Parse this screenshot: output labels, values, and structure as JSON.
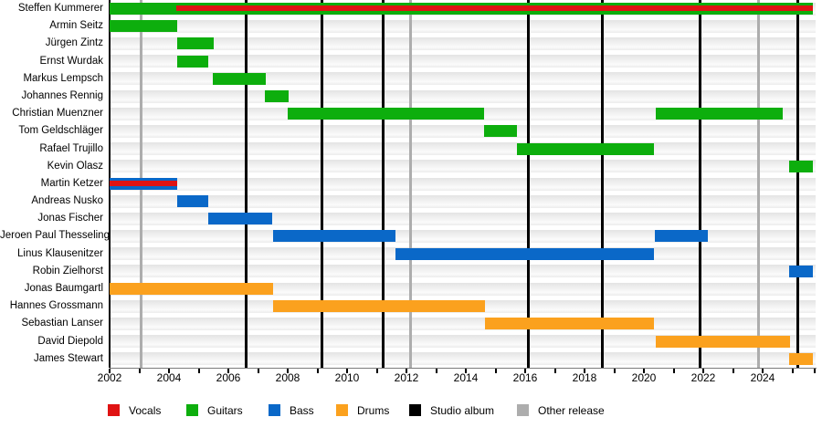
{
  "chart_data": {
    "type": "timeline",
    "description": "Band members timeline (Gantt-style) with instrument tenures and release markers",
    "x_axis": {
      "start_year": 2002,
      "end_year": 2025.8,
      "tick_labels": [
        "2002",
        "2004",
        "2006",
        "2008",
        "2010",
        "2012",
        "2014",
        "2016",
        "2018",
        "2020",
        "2022",
        "2024"
      ],
      "labeled_tick_years": [
        2002,
        2004,
        2006,
        2008,
        2010,
        2012,
        2014,
        2016,
        2018,
        2020,
        2022,
        2024
      ],
      "minor_tick_years": [
        2002,
        2003,
        2004,
        2005,
        2006,
        2007,
        2008,
        2009,
        2010,
        2011,
        2012,
        2013,
        2014,
        2015,
        2016,
        2017,
        2018,
        2019,
        2020,
        2021,
        2022,
        2023,
        2024,
        2025
      ]
    },
    "legend": [
      {
        "key": "vocals",
        "label": "Vocals"
      },
      {
        "key": "guitars",
        "label": "Guitars"
      },
      {
        "key": "bass",
        "label": "Bass"
      },
      {
        "key": "drums",
        "label": "Drums"
      },
      {
        "key": "studio_album",
        "label": "Studio album"
      },
      {
        "key": "other_release",
        "label": "Other release"
      }
    ],
    "colors": {
      "vocals": "#e01313",
      "guitars": "#0dae0d",
      "bass": "#0a68c8",
      "drums": "#fba11e",
      "studio_album": "#000000",
      "other_release": "#adadad"
    },
    "events": {
      "studio_albums": [
        2006.6,
        2009.15,
        2011.2,
        2016.1,
        2018.6,
        2021.9,
        2025.17
      ],
      "other_releases": [
        2003.05,
        2012.15,
        2023.85
      ]
    },
    "members": [
      {
        "name": "Steffen Kummerer",
        "stints": [
          {
            "instrument": "guitars",
            "start": 2002.0,
            "end": 2025.7
          },
          {
            "instrument": "vocals",
            "start": 2004.25,
            "end": 2025.7,
            "overlay": true
          }
        ]
      },
      {
        "name": "Armin Seitz",
        "stints": [
          {
            "instrument": "guitars",
            "start": 2002.0,
            "end": 2004.28
          }
        ]
      },
      {
        "name": "Jürgen Zintz",
        "stints": [
          {
            "instrument": "guitars",
            "start": 2004.28,
            "end": 2005.5
          }
        ]
      },
      {
        "name": "Ernst Wurdak",
        "stints": [
          {
            "instrument": "guitars",
            "start": 2004.28,
            "end": 2005.32
          }
        ]
      },
      {
        "name": "Markus Lempsch",
        "stints": [
          {
            "instrument": "guitars",
            "start": 2005.48,
            "end": 2007.26
          }
        ]
      },
      {
        "name": "Johannes Rennig",
        "stints": [
          {
            "instrument": "guitars",
            "start": 2007.23,
            "end": 2008.03
          }
        ]
      },
      {
        "name": "Christian Muenzner",
        "stints": [
          {
            "instrument": "guitars",
            "start": 2008.0,
            "end": 2014.62
          },
          {
            "instrument": "guitars",
            "start": 2020.4,
            "end": 2024.68
          }
        ]
      },
      {
        "name": "Tom Geldschläger",
        "stints": [
          {
            "instrument": "guitars",
            "start": 2014.62,
            "end": 2015.72
          }
        ]
      },
      {
        "name": "Rafael Trujillo",
        "stints": [
          {
            "instrument": "guitars",
            "start": 2015.72,
            "end": 2020.34
          }
        ]
      },
      {
        "name": "Kevin Olasz",
        "stints": [
          {
            "instrument": "guitars",
            "start": 2024.9,
            "end": 2025.7
          }
        ]
      },
      {
        "name": "Martin Ketzer",
        "stints": [
          {
            "instrument": "bass",
            "start": 2002.0,
            "end": 2004.28
          },
          {
            "instrument": "vocals",
            "start": 2002.0,
            "end": 2004.28,
            "overlay": true
          }
        ]
      },
      {
        "name": "Andreas Nusko",
        "stints": [
          {
            "instrument": "bass",
            "start": 2004.28,
            "end": 2005.32
          }
        ]
      },
      {
        "name": "Jonas Fischer",
        "stints": [
          {
            "instrument": "bass",
            "start": 2005.32,
            "end": 2007.48
          }
        ]
      },
      {
        "name": "Jeroen Paul Thesseling",
        "stints": [
          {
            "instrument": "bass",
            "start": 2007.5,
            "end": 2011.63
          },
          {
            "instrument": "bass",
            "start": 2020.38,
            "end": 2022.15
          }
        ]
      },
      {
        "name": "Linus Klausenitzer",
        "stints": [
          {
            "instrument": "bass",
            "start": 2011.63,
            "end": 2020.34
          }
        ]
      },
      {
        "name": "Robin Zielhorst",
        "stints": [
          {
            "instrument": "bass",
            "start": 2024.9,
            "end": 2025.7
          }
        ]
      },
      {
        "name": "Jonas Baumgartl",
        "stints": [
          {
            "instrument": "drums",
            "start": 2002.0,
            "end": 2007.5
          }
        ]
      },
      {
        "name": "Hannes Grossmann",
        "stints": [
          {
            "instrument": "drums",
            "start": 2007.5,
            "end": 2014.65
          }
        ]
      },
      {
        "name": "Sebastian Lanser",
        "stints": [
          {
            "instrument": "drums",
            "start": 2014.65,
            "end": 2020.34
          }
        ]
      },
      {
        "name": "David Diepold",
        "stints": [
          {
            "instrument": "drums",
            "start": 2020.4,
            "end": 2024.92
          }
        ]
      },
      {
        "name": "James Stewart",
        "stints": [
          {
            "instrument": "drums",
            "start": 2024.9,
            "end": 2025.7
          }
        ]
      }
    ]
  }
}
